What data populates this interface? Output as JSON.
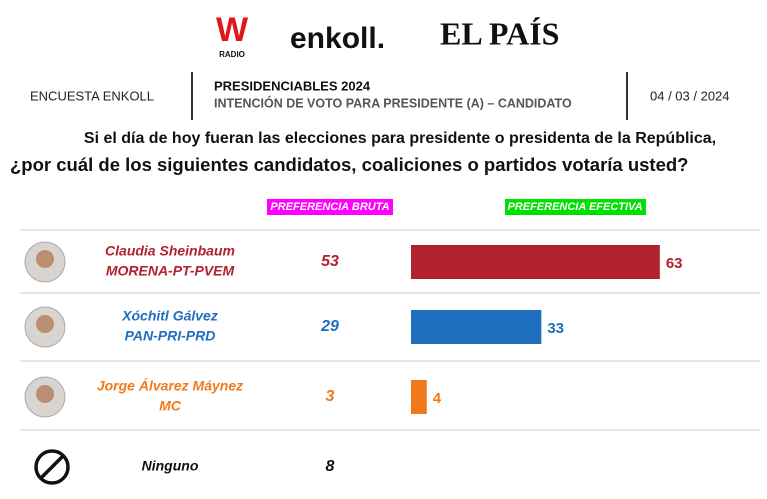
{
  "header": {
    "brand1": "W",
    "brand1_sub": "RADIO",
    "brand2": "enkoll.",
    "brand3": "EL PAÍS"
  },
  "survey": "ENCUESTA ENKOLL",
  "title": "PRESIDENCIABLES 2024",
  "subtitle": "INTENCIÓN DE VOTO PARA PRESIDENTE (A) – CANDIDATO",
  "date": "04 / 03 / 2024",
  "question": [
    "Si el día de hoy fueran las elecciones para presidente o presidenta de la República,",
    "¿por cuál de los siguientes candidatos, coaliciones o partidos votaría usted?"
  ],
  "columns": {
    "bruta": "PREFERENCIA BRUTA",
    "efectiva": "PREFERENCIA EFECTIVA"
  },
  "rows": [
    {
      "name": "Claudia Sheinbaum",
      "party": "MORENA-PT-PVEM",
      "bruta": 53,
      "efectiva": 63,
      "color": "#b0222e"
    },
    {
      "name": "Xóchitl Gálvez",
      "party": "PAN-PRI-PRD",
      "bruta": 29,
      "efectiva": 33,
      "color": "#1f6fbf"
    },
    {
      "name": "Jorge Álvarez Máynez",
      "party": "MC",
      "bruta": 3,
      "efectiva": 4,
      "color": "#f07a1a"
    },
    {
      "name": "Ninguno",
      "bruta": 8,
      "color": "#111111"
    }
  ]
}
